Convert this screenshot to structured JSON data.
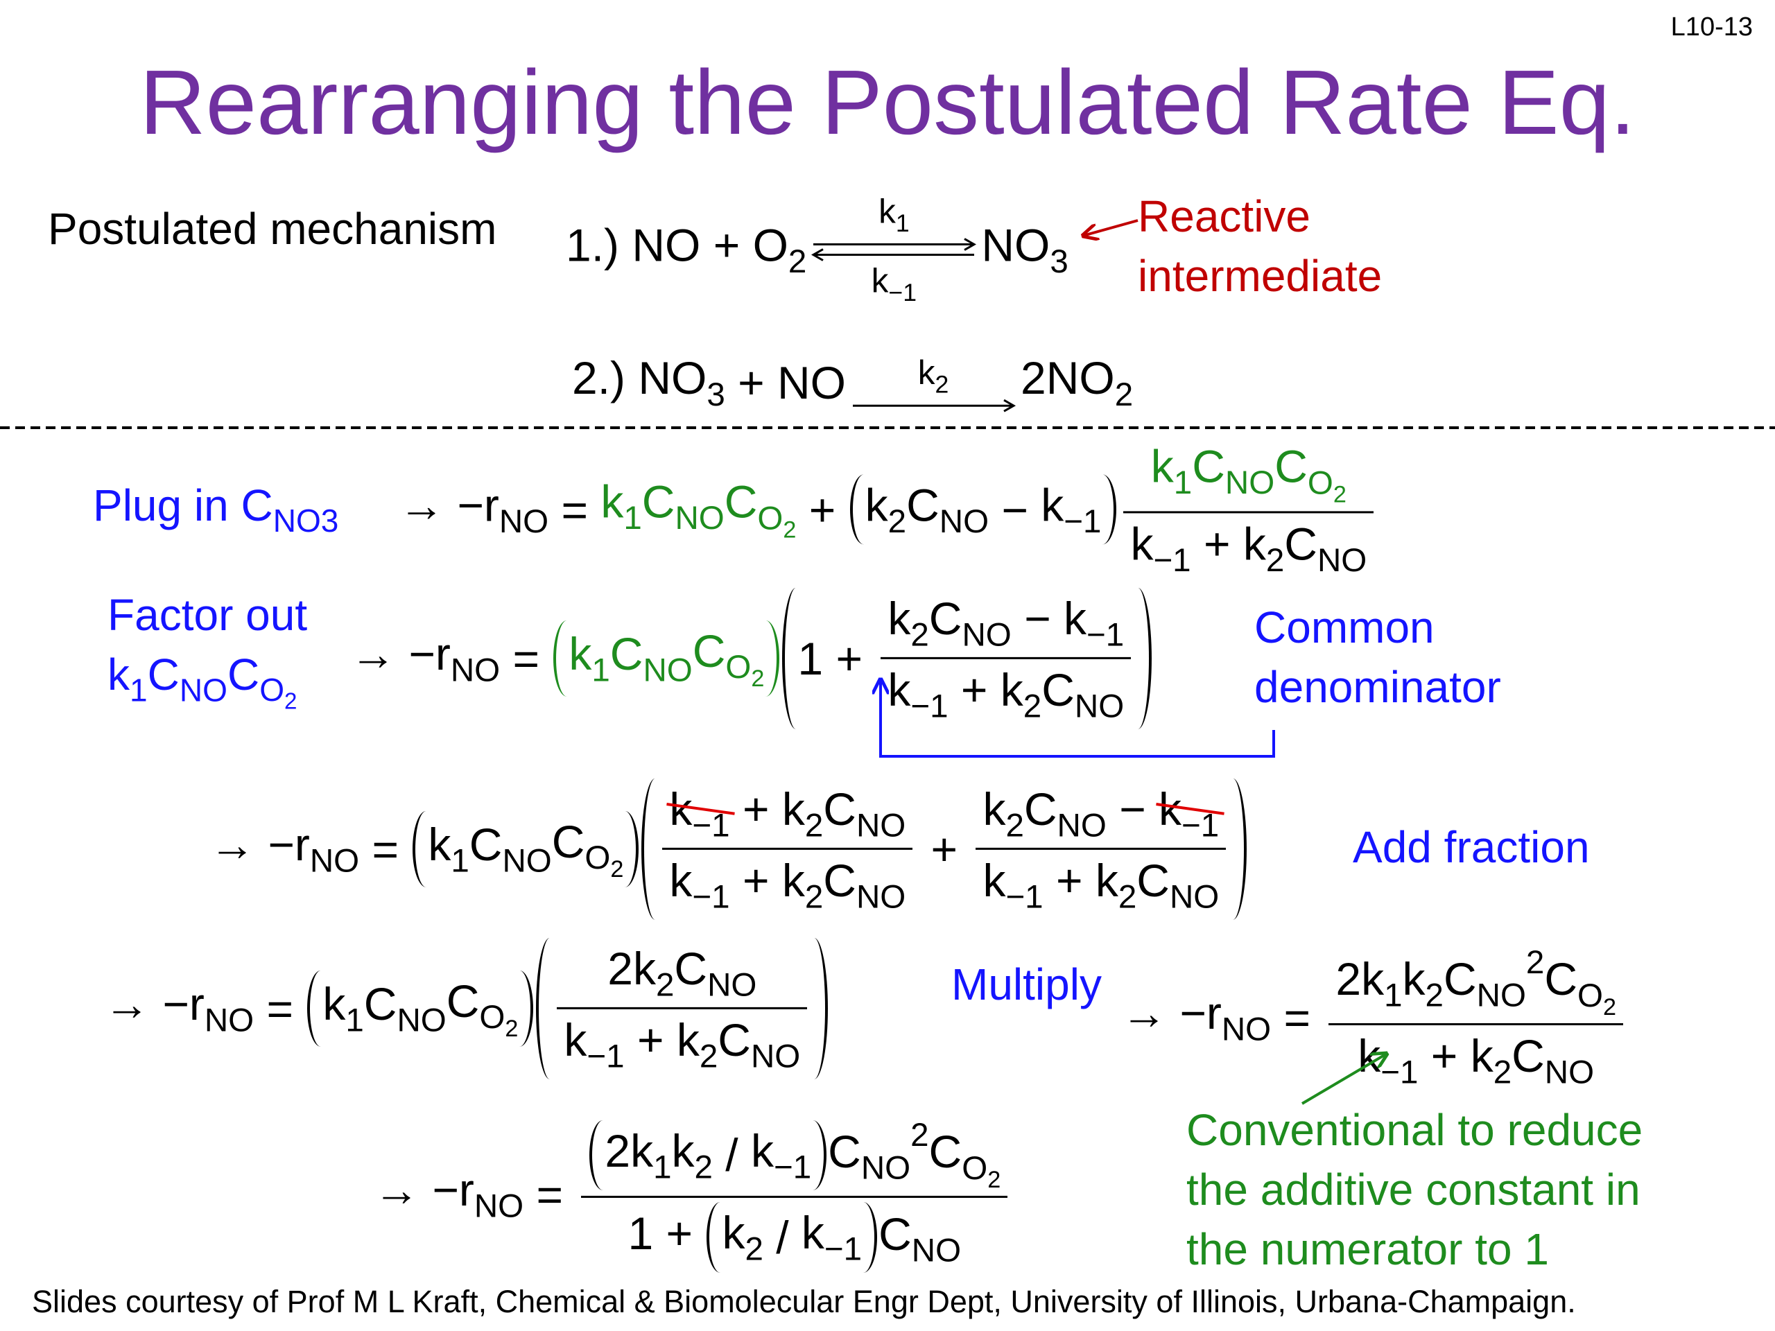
{
  "slide_number": "L10-13",
  "title": "Rearranging the Postulated Rate Eq.",
  "mechanism": {
    "label": "Postulated mechanism",
    "step1": [
      {
        "t": "1.) NO + O",
        "sub": "2"
      },
      {
        "eq": {
          "t": "k",
          "sub": "1"
        },
        "below": {
          "t": "k",
          "sub": "−1"
        }
      },
      {
        "t": "NO",
        "sub": "3"
      }
    ],
    "annotation": [
      "Reactive",
      "intermediate"
    ],
    "step2": [
      {
        "t": "2.) NO",
        "sub": "3"
      },
      " + NO",
      {
        "arrow": {
          "t": "k",
          "sub": "2"
        }
      },
      {
        "t": "2NO",
        "sub": "2"
      }
    ]
  },
  "plug_in": {
    "label": {
      "t": "Plug in C",
      "sub": "NO3"
    },
    "equation": [
      {
        "t": "→ −r",
        "sub": "NO"
      },
      " = ",
      {
        "color": "#1e8c1e",
        "items": [
          {
            "t": "k",
            "sub": "1"
          },
          {
            "t": "C",
            "sub": "NO"
          },
          {
            "t": "C",
            "sub": {
              "t": "O",
              "sub": "2"
            }
          }
        ]
      },
      " + ",
      {
        "paren": [
          {
            "t": "k",
            "sub": "2"
          },
          {
            "t": "C",
            "sub": "NO"
          },
          " − ",
          {
            "t": "k",
            "sub": "−1"
          }
        ]
      },
      {
        "frac": [
          [
            {
              "color": "#1e8c1e",
              "items": [
                {
                  "t": "k",
                  "sub": "1"
                },
                {
                  "t": "C",
                  "sub": "NO"
                },
                {
                  "t": "C",
                  "sub": {
                    "t": "O",
                    "sub": "2"
                  }
                }
              ]
            }
          ],
          [
            {
              "t": "k",
              "sub": "−1"
            },
            " + ",
            {
              "t": "k",
              "sub": "2"
            },
            {
              "t": "C",
              "sub": "NO"
            }
          ]
        ]
      }
    ]
  },
  "factor_out": {
    "label": [
      "Factor out",
      [
        {
          "t": "k",
          "sub": "1"
        },
        {
          "t": "C",
          "sub": "NO"
        },
        {
          "t": "C",
          "sub": {
            "t": "O",
            "sub": "2"
          }
        }
      ]
    ],
    "equation": [
      {
        "t": "→ −r",
        "sub": "NO"
      },
      " = ",
      {
        "paren": [
          {
            "t": "k",
            "sub": "1"
          },
          {
            "t": "C",
            "sub": "NO"
          },
          {
            "t": "C",
            "sub": {
              "t": "O",
              "sub": "2"
            }
          }
        ],
        "color": "#1e8c1e"
      },
      {
        "paren": [
          "1 + ",
          {
            "frac": [
              [
                {
                  "t": "k",
                  "sub": "2"
                },
                {
                  "t": "C",
                  "sub": "NO"
                },
                " − ",
                {
                  "t": "k",
                  "sub": "−1"
                }
              ],
              [
                {
                  "t": "k",
                  "sub": "−1"
                },
                " + ",
                {
                  "t": "k",
                  "sub": "2"
                },
                {
                  "t": "C",
                  "sub": "NO"
                }
              ]
            ]
          }
        ]
      }
    ],
    "note": [
      "Common",
      "denominator"
    ]
  },
  "add_fraction": {
    "equation": [
      {
        "t": "→ −r",
        "sub": "NO"
      },
      " = ",
      {
        "paren": [
          {
            "t": "k",
            "sub": "1"
          },
          {
            "t": "C",
            "sub": "NO"
          },
          {
            "t": "C",
            "sub": {
              "t": "O",
              "sub": "2"
            }
          }
        ]
      },
      {
        "paren": [
          {
            "frac": [
              [
                {
                  "strike": [
                    {
                      "t": "k",
                      "sub": "−1"
                    }
                  ]
                },
                " + ",
                {
                  "t": "k",
                  "sub": "2"
                },
                {
                  "t": "C",
                  "sub": "NO"
                }
              ],
              [
                {
                  "t": "k",
                  "sub": "−1"
                },
                " + ",
                {
                  "t": "k",
                  "sub": "2"
                },
                {
                  "t": "C",
                  "sub": "NO"
                }
              ]
            ]
          },
          " + ",
          {
            "frac": [
              [
                {
                  "t": "k",
                  "sub": "2"
                },
                {
                  "t": "C",
                  "sub": "NO"
                },
                " − ",
                {
                  "strike": [
                    {
                      "t": "k",
                      "sub": "−1"
                    }
                  ]
                }
              ],
              [
                {
                  "t": "k",
                  "sub": "−1"
                },
                " + ",
                {
                  "t": "k",
                  "sub": "2"
                },
                {
                  "t": "C",
                  "sub": "NO"
                }
              ]
            ]
          }
        ]
      }
    ],
    "note": "Add fraction"
  },
  "multiply": {
    "equation": [
      {
        "t": "→ −r",
        "sub": "NO"
      },
      " = ",
      {
        "paren": [
          {
            "t": "k",
            "sub": "1"
          },
          {
            "t": "C",
            "sub": "NO"
          },
          {
            "t": "C",
            "sub": {
              "t": "O",
              "sub": "2"
            }
          }
        ]
      },
      {
        "paren": [
          {
            "frac": [
              [
                {
                  "t": "2k",
                  "sub": "2"
                },
                {
                  "t": "C",
                  "sub": "NO"
                }
              ],
              [
                {
                  "t": "k",
                  "sub": "−1"
                },
                " + ",
                {
                  "t": "k",
                  "sub": "2"
                },
                {
                  "t": "C",
                  "sub": "NO"
                }
              ]
            ]
          }
        ]
      }
    ],
    "note": "Multiply",
    "result": [
      {
        "t": "→ −r",
        "sub": "NO"
      },
      " = ",
      {
        "frac": [
          [
            {
              "t": "2k",
              "sub": "1"
            },
            {
              "t": "k",
              "sub": "2"
            },
            {
              "t": "C",
              "sub": "NO",
              "sup": "2"
            },
            {
              "t": "C",
              "sub": {
                "t": "O",
                "sub": "2"
              }
            }
          ],
          [
            {
              "t": "k",
              "sub": "−1"
            },
            " + ",
            {
              "t": "k",
              "sub": "2"
            },
            {
              "t": "C",
              "sub": "NO"
            }
          ]
        ]
      }
    ]
  },
  "final": {
    "equation": [
      {
        "t": "→ −r",
        "sub": "NO"
      },
      " = ",
      {
        "frac": [
          [
            {
              "paren": [
                {
                  "t": "2k",
                  "sub": "1"
                },
                {
                  "t": "k",
                  "sub": "2"
                },
                " / ",
                {
                  "t": "k",
                  "sub": "−1"
                }
              ]
            },
            {
              "t": "C",
              "sub": "NO",
              "sup": "2"
            },
            {
              "t": "C",
              "sub": {
                "t": "O",
                "sub": "2"
              }
            }
          ],
          [
            "1 + ",
            {
              "paren": [
                {
                  "t": "k",
                  "sub": "2"
                },
                " / ",
                {
                  "t": "k",
                  "sub": "−1"
                }
              ]
            },
            {
              "t": "C",
              "sub": "NO"
            }
          ]
        ]
      }
    ],
    "note": [
      "Conventional to reduce",
      "the additive constant in",
      "the numerator to 1"
    ]
  },
  "footer": "Slides courtesy of Prof M L Kraft, Chemical & Biomolecular Engr Dept, University of Illinois, Urbana-Champaign."
}
